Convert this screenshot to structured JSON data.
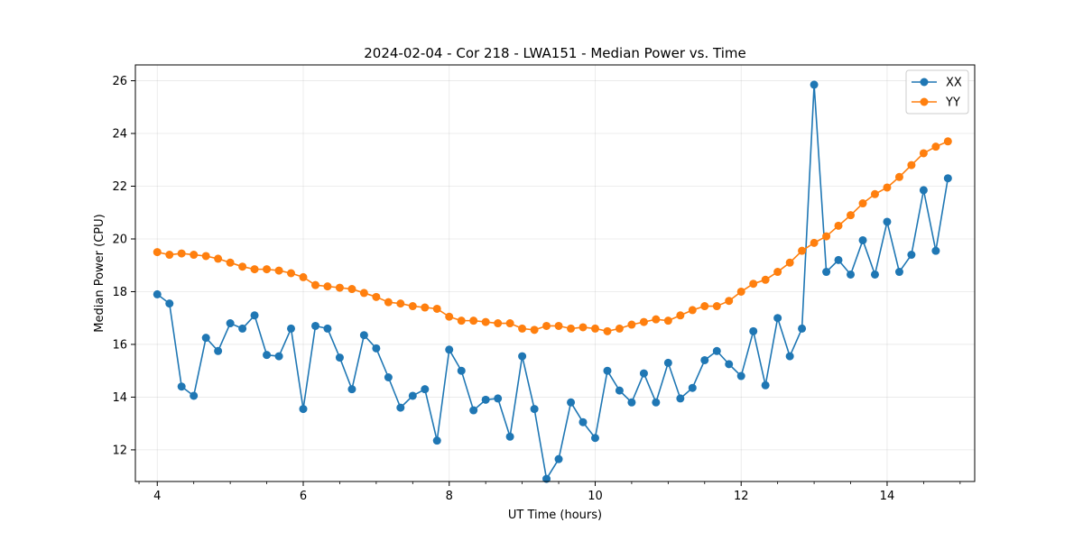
{
  "chart_data": {
    "type": "line",
    "title": "2024-02-04 - Cor 218 - LWA151 - Median Power vs. Time",
    "xlabel": "UT Time (hours)",
    "ylabel": "Median Power (CPU)",
    "xlim": [
      3.7,
      15.2
    ],
    "ylim": [
      10.8,
      26.6
    ],
    "xticks": [
      4,
      6,
      8,
      10,
      12,
      14
    ],
    "xticks_minor": [
      3.75,
      4.5,
      5,
      5.5,
      6.5,
      7,
      7.5,
      8.5,
      9,
      9.5,
      10.5,
      11,
      11.5,
      12.5,
      13,
      13.5,
      14.5,
      15
    ],
    "yticks": [
      12,
      14,
      16,
      18,
      20,
      22,
      24,
      26
    ],
    "grid": true,
    "legend_position": "top-right",
    "x": [
      4.0,
      4.167,
      4.333,
      4.5,
      4.667,
      4.833,
      5.0,
      5.167,
      5.333,
      5.5,
      5.667,
      5.833,
      6.0,
      6.167,
      6.333,
      6.5,
      6.667,
      6.833,
      7.0,
      7.167,
      7.333,
      7.5,
      7.667,
      7.833,
      8.0,
      8.167,
      8.333,
      8.5,
      8.667,
      8.833,
      9.0,
      9.167,
      9.333,
      9.5,
      9.667,
      9.833,
      10.0,
      10.167,
      10.333,
      10.5,
      10.667,
      10.833,
      11.0,
      11.167,
      11.333,
      11.5,
      11.667,
      11.833,
      12.0,
      12.167,
      12.333,
      12.5,
      12.667,
      12.833,
      13.0,
      13.167,
      13.333,
      13.5,
      13.667,
      13.833,
      14.0,
      14.167,
      14.333,
      14.5,
      14.667,
      14.833
    ],
    "series": [
      {
        "name": "XX",
        "color": "#1f77b4",
        "values": [
          17.9,
          17.55,
          14.4,
          14.05,
          16.25,
          15.75,
          16.8,
          16.6,
          17.1,
          15.6,
          15.55,
          16.6,
          13.55,
          16.7,
          16.6,
          15.5,
          14.3,
          16.35,
          15.85,
          14.75,
          13.6,
          14.05,
          14.3,
          12.35,
          15.8,
          15.0,
          13.5,
          13.9,
          13.95,
          12.5,
          15.55,
          13.55,
          10.9,
          11.65,
          13.8,
          13.05,
          12.45,
          15.0,
          14.25,
          13.8,
          14.9,
          13.8,
          15.3,
          13.95,
          14.35,
          15.4,
          15.75,
          15.25,
          14.8,
          16.5,
          14.45,
          17.0,
          15.55,
          16.6,
          25.85,
          18.75,
          19.2,
          18.65,
          19.95,
          18.65,
          20.65,
          18.75,
          19.4,
          21.85,
          19.55,
          22.3
        ]
      },
      {
        "name": "YY",
        "color": "#ff7f0e",
        "values": [
          19.5,
          19.4,
          19.45,
          19.4,
          19.35,
          19.25,
          19.1,
          18.95,
          18.85,
          18.85,
          18.8,
          18.7,
          18.55,
          18.25,
          18.2,
          18.15,
          18.1,
          17.95,
          17.8,
          17.6,
          17.55,
          17.45,
          17.4,
          17.35,
          17.05,
          16.9,
          16.9,
          16.85,
          16.8,
          16.8,
          16.6,
          16.55,
          16.7,
          16.7,
          16.6,
          16.65,
          16.6,
          16.5,
          16.6,
          16.75,
          16.85,
          16.95,
          16.9,
          17.1,
          17.3,
          17.45,
          17.45,
          17.65,
          18.0,
          18.3,
          18.45,
          18.75,
          19.1,
          19.55,
          19.85,
          20.1,
          20.5,
          20.9,
          21.35,
          21.7,
          21.95,
          22.35,
          22.8,
          23.25,
          23.5,
          23.7
        ]
      }
    ]
  }
}
